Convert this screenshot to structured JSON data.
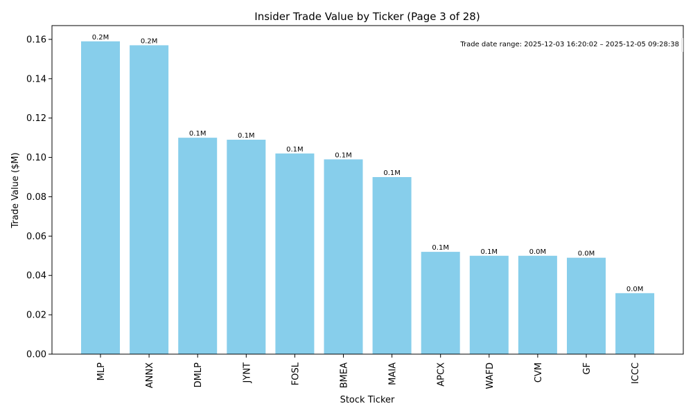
{
  "chart_data": {
    "type": "bar",
    "title": "Insider Trade Value by Ticker (Page 3 of 28)",
    "xlabel": "Stock Ticker",
    "ylabel": "Trade Value ($M)",
    "ylim": [
      0,
      0.167
    ],
    "yticks": [
      0.0,
      0.02,
      0.04,
      0.06,
      0.08,
      0.1,
      0.12,
      0.14,
      0.16
    ],
    "ytick_labels": [
      "0.00",
      "0.02",
      "0.04",
      "0.06",
      "0.08",
      "0.10",
      "0.12",
      "0.14",
      "0.16"
    ],
    "categories": [
      "MLP",
      "ANNX",
      "DMLP",
      "JYNT",
      "FOSL",
      "BMEA",
      "MAIA",
      "APCX",
      "WAFD",
      "CVM",
      "GF",
      "ICCC"
    ],
    "values": [
      0.159,
      0.157,
      0.11,
      0.109,
      0.102,
      0.099,
      0.09,
      0.052,
      0.05,
      0.05,
      0.049,
      0.031
    ],
    "data_labels": [
      "0.2M",
      "0.2M",
      "0.1M",
      "0.1M",
      "0.1M",
      "0.1M",
      "0.1M",
      "0.1M",
      "0.1M",
      "0.0M",
      "0.0M",
      "0.0M"
    ],
    "bar_color": "#87ceeb",
    "annotation": "Trade date range: 2025-12-03 16:20:02 – 2025-12-05 09:28:38",
    "grid": false
  }
}
